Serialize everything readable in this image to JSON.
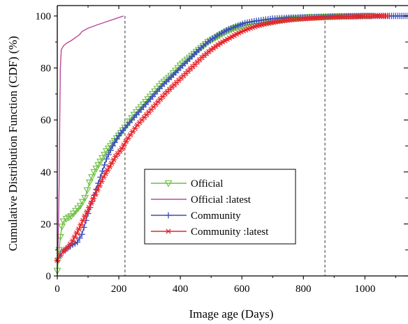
{
  "chart_data": {
    "type": "line",
    "title": "",
    "xlabel": "Image age (Days)",
    "ylabel": "Cumulative Distribution Function (CDF) (%)",
    "xlim": [
      0,
      1140
    ],
    "ylim": [
      0,
      104
    ],
    "xticks": [
      0,
      200,
      400,
      600,
      800,
      1000
    ],
    "yticks": [
      0,
      20,
      40,
      60,
      80,
      100
    ],
    "grid": false,
    "legend_position": "lower-center",
    "reference_lines_x": [
      220,
      870
    ],
    "series": [
      {
        "name": "Official",
        "color": "#6abf3f",
        "marker": "triangle-down-open",
        "x": [
          0,
          3,
          6,
          10,
          15,
          20,
          30,
          45,
          60,
          75,
          90,
          105,
          120,
          140,
          160,
          180,
          200,
          220,
          250,
          280,
          310,
          340,
          370,
          400,
          430,
          460,
          490,
          520,
          550,
          580,
          610,
          640,
          670,
          700,
          730,
          760,
          790,
          820,
          850,
          880,
          910,
          940,
          970,
          1000,
          1020
        ],
        "y": [
          2,
          6,
          10,
          15,
          19,
          21,
          22,
          23,
          25,
          27,
          30,
          36,
          40,
          44,
          48,
          51,
          54,
          57,
          62,
          66,
          70,
          74,
          77,
          81,
          84,
          87,
          90,
          92,
          94,
          95.5,
          96.5,
          97,
          97.5,
          98,
          98.5,
          99,
          99.2,
          99.5,
          99.6,
          99.7,
          99.8,
          99.9,
          99.9,
          100,
          100
        ]
      },
      {
        "name": "Official :latest",
        "color": "#b8489e",
        "marker": "none",
        "x": [
          0,
          3,
          6,
          8,
          10,
          13,
          20,
          30,
          45,
          60,
          70,
          75,
          80,
          100,
          130,
          160,
          190,
          215
        ],
        "y": [
          5,
          14,
          35,
          60,
          80,
          87,
          88.5,
          89.5,
          90.5,
          91.8,
          92.6,
          93.2,
          94,
          95.3,
          96.6,
          97.8,
          99,
          100
        ]
      },
      {
        "name": "Community",
        "color": "#3b4fb8",
        "marker": "plus",
        "x": [
          0,
          10,
          20,
          35,
          50,
          65,
          80,
          100,
          120,
          140,
          160,
          180,
          200,
          220,
          250,
          280,
          310,
          340,
          370,
          400,
          430,
          460,
          490,
          520,
          550,
          580,
          610,
          640,
          670,
          700,
          730,
          760,
          790,
          820,
          850,
          880,
          910,
          940,
          980,
          1020,
          1060,
          1100,
          1140
        ],
        "y": [
          6,
          8,
          9.5,
          11,
          12,
          13,
          16,
          24,
          31,
          38,
          45,
          50,
          54,
          57,
          61,
          65,
          69,
          73,
          76.5,
          80,
          83.5,
          87,
          90,
          92.5,
          94.5,
          96,
          97.3,
          98,
          98.5,
          99,
          99.2,
          99.4,
          99.5,
          99.6,
          99.7,
          99.8,
          99.9,
          99.9,
          100,
          100,
          100,
          100,
          100
        ]
      },
      {
        "name": "Community :latest",
        "color": "#e8242a",
        "marker": "asterisk",
        "x": [
          0,
          10,
          20,
          35,
          50,
          70,
          90,
          110,
          130,
          150,
          170,
          190,
          210,
          230,
          260,
          290,
          320,
          350,
          380,
          410,
          440,
          470,
          500,
          530,
          560,
          590,
          620,
          650,
          680,
          710,
          740,
          770,
          800,
          830,
          860,
          890,
          920,
          950,
          980,
          1010,
          1040,
          1070
        ],
        "y": [
          6,
          8,
          9.5,
          11,
          13.5,
          18,
          23,
          28,
          33,
          38,
          42,
          46,
          49,
          53,
          58,
          62,
          66,
          70,
          73.5,
          77,
          80.5,
          84,
          87,
          89.5,
          91.5,
          93.5,
          95,
          96.2,
          97,
          97.7,
          98.2,
          98.6,
          98.9,
          99.1,
          99.3,
          99.5,
          99.6,
          99.7,
          99.8,
          99.9,
          100,
          100
        ]
      }
    ]
  }
}
